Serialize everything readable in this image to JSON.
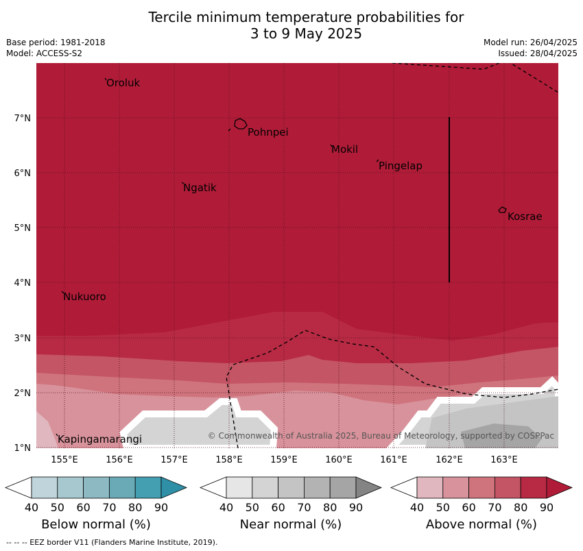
{
  "title_line1": "Tercile minimum temperature probabilities for",
  "title_line2": "3 to 9 May 2025",
  "base_period": "Base period: 1981-2018",
  "model": "Model: ACCESS-S2",
  "model_run": "Model run: 26/04/2025",
  "issued": "Issued: 28/04/2025",
  "lon_labels": [
    "155°E",
    "156°E",
    "157°E",
    "158°E",
    "159°E",
    "160°E",
    "161°E",
    "162°E",
    "163°E"
  ],
  "lat_labels": [
    "7°N",
    "6°N",
    "5°N",
    "4°N",
    "3°N",
    "2°N",
    "1°N"
  ],
  "places": [
    {
      "name": "Oroluk"
    },
    {
      "name": "Pohnpei"
    },
    {
      "name": "Mokil"
    },
    {
      "name": "Pingelap"
    },
    {
      "name": "Ngatik"
    },
    {
      "name": "Kosrae"
    },
    {
      "name": "Nukuoro"
    },
    {
      "name": "Kapingamarangi"
    }
  ],
  "copyright": "© Commonwealth of Australia 2025, Bureau of Meteorology, supported by COSPPac",
  "colorbars": [
    {
      "label": "Below normal (%)",
      "ticks": [
        "40",
        "50",
        "60",
        "70",
        "80",
        "90"
      ],
      "colors": [
        "#ffffff",
        "#bfd5db",
        "#a6c8ce",
        "#8cb9c2",
        "#6aaab6",
        "#449fb0",
        "#2f8fa6"
      ]
    },
    {
      "label": "Near normal (%)",
      "ticks": [
        "40",
        "50",
        "60",
        "70",
        "80",
        "90"
      ],
      "colors": [
        "#ffffff",
        "#e6e6e6",
        "#d4d4d4",
        "#c4c4c4",
        "#b3b3b3",
        "#a5a5a5",
        "#848484"
      ]
    },
    {
      "label": "Above normal (%)",
      "ticks": [
        "40",
        "50",
        "60",
        "70",
        "80",
        "90"
      ],
      "colors": [
        "#ffffff",
        "#e0b7be",
        "#d8929b",
        "#cf747d",
        "#c45565",
        "#b82a44",
        "#b01c38"
      ]
    }
  ],
  "footer": "--  --  -- EEZ border V11 (Flanders Marine Institute, 2019)."
}
